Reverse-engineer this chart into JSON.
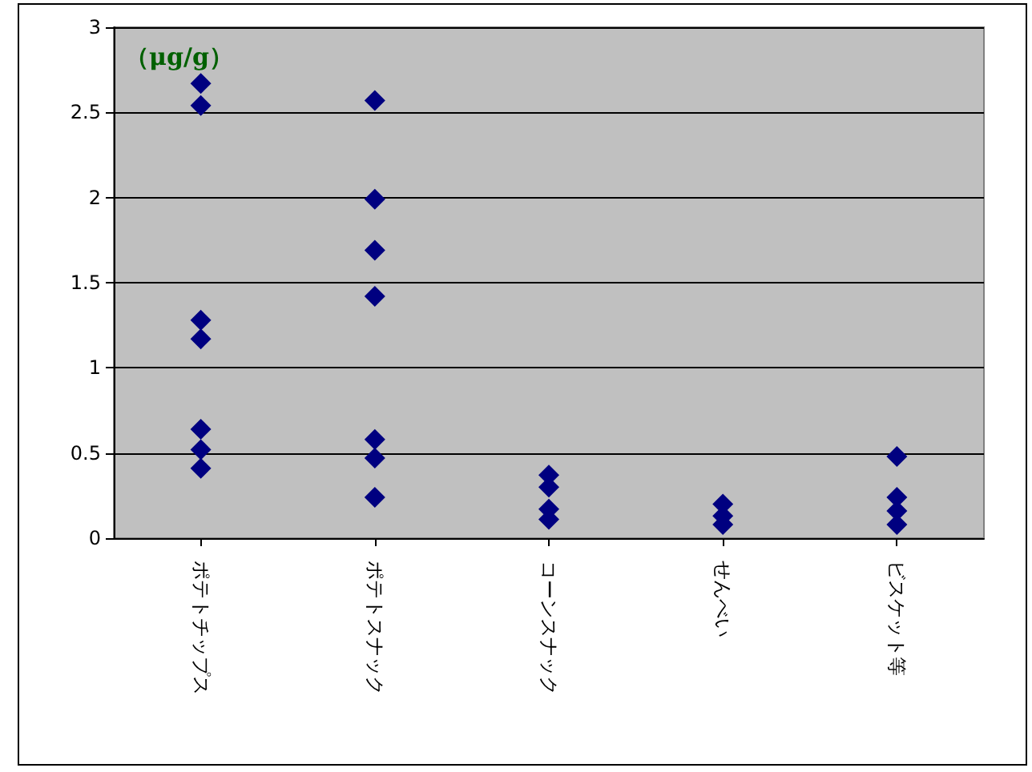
{
  "chart_data": {
    "type": "scatter",
    "ylabel": "（μg/g）",
    "categories": [
      "ポテトチップス",
      "ポテトスナック",
      "コーンスナック",
      "せんべい",
      "ビスケット等"
    ],
    "series": [
      {
        "color": "#000080",
        "x": [
          "ポテトチップス",
          "ポテトチップス",
          "ポテトチップス",
          "ポテトチップス",
          "ポテトチップス",
          "ポテトチップス",
          "ポテトチップス",
          "ポテトスナック",
          "ポテトスナック",
          "ポテトスナック",
          "ポテトスナック",
          "ポテトスナック",
          "ポテトスナック",
          "ポテトスナック",
          "コーンスナック",
          "コーンスナック",
          "コーンスナック",
          "コーンスナック",
          "せんべい",
          "せんべい",
          "せんべい",
          "ビスケット等",
          "ビスケット等",
          "ビスケット等",
          "ビスケット等"
        ],
        "values": [
          2.67,
          2.54,
          1.28,
          1.17,
          0.64,
          0.52,
          0.41,
          2.57,
          1.99,
          1.69,
          1.42,
          0.58,
          0.47,
          0.24,
          0.37,
          0.3,
          0.17,
          0.11,
          0.2,
          0.13,
          0.08,
          0.48,
          0.24,
          0.16,
          0.08
        ]
      }
    ],
    "ylim": [
      0,
      3
    ],
    "yticks": [
      0,
      0.5,
      1,
      1.5,
      2,
      2.5,
      3
    ],
    "grid": "y",
    "marker": "diamond"
  }
}
